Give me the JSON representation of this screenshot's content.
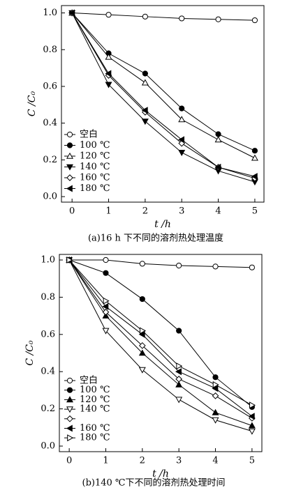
{
  "chart_data": [
    {
      "type": "line",
      "caption": "(a)16 h 下不同的溶剂热处理温度",
      "x_label": "t /h",
      "y_label": "C /C₀",
      "x": [
        0,
        1,
        2,
        3,
        4,
        5
      ],
      "xlim": [
        -0.29,
        5.25
      ],
      "xticks": [
        0,
        1,
        2,
        3,
        4,
        5
      ],
      "ylim": [
        -0.03,
        1.04
      ],
      "yticks": [
        {
          "value": 0,
          "label": "0.0"
        },
        {
          "value": 0.2,
          "label": "0.2"
        },
        {
          "value": 0.4,
          "label": "0.4"
        },
        {
          "value": 0.6,
          "label": "0.6"
        },
        {
          "value": 0.8,
          "label": "0.8"
        },
        {
          "value": 1,
          "label": "1.0"
        }
      ],
      "series": [
        {
          "name": "空白",
          "color": "#000000",
          "marker": "circle-open",
          "values": [
            1.0,
            0.99,
            0.98,
            0.97,
            0.965,
            0.96
          ]
        },
        {
          "name": "100 ℃",
          "color": "#000000",
          "marker": "circle",
          "values": [
            1.0,
            0.78,
            0.67,
            0.48,
            0.34,
            0.25
          ]
        },
        {
          "name": "120 ℃",
          "color": "#000000",
          "marker": "triangle-up-open",
          "values": [
            1.0,
            0.76,
            0.62,
            0.42,
            0.31,
            0.21
          ]
        },
        {
          "name": "140 ℃",
          "color": "#000000",
          "marker": "triangle-down",
          "values": [
            1.0,
            0.61,
            0.41,
            0.24,
            0.14,
            0.08
          ]
        },
        {
          "name": "160 ℃",
          "color": "#000000",
          "marker": "diamond-open",
          "values": [
            1.0,
            0.66,
            0.46,
            0.29,
            0.16,
            0.1
          ]
        },
        {
          "name": "180 ℃",
          "color": "#000000",
          "marker": "triangle-left",
          "values": [
            1.0,
            0.67,
            0.47,
            0.31,
            0.16,
            0.11
          ]
        }
      ]
    },
    {
      "type": "line",
      "caption": "(b)140 ℃下不同的溶剂热处理时间",
      "x_label": "t /h",
      "y_label": "C /C₀",
      "x": [
        0,
        1,
        2,
        3,
        4,
        5
      ],
      "xlim": [
        -0.27,
        5.27
      ],
      "xticks": [
        0,
        1,
        2,
        3,
        4,
        5
      ],
      "ylim": [
        -0.03,
        1.03
      ],
      "yticks": [
        {
          "value": 0,
          "label": "0.0"
        },
        {
          "value": 0.2,
          "label": "0.2"
        },
        {
          "value": 0.4,
          "label": "0.4"
        },
        {
          "value": 0.6,
          "label": "0.6"
        },
        {
          "value": 0.8,
          "label": "0.8"
        },
        {
          "value": 1,
          "label": "1.0"
        }
      ],
      "series": [
        {
          "name": "空白",
          "color": "#000000",
          "marker": "circle-open",
          "values": [
            1.0,
            1.0,
            0.98,
            0.97,
            0.965,
            0.96
          ]
        },
        {
          "name": "100 ℃",
          "color": "#000000",
          "marker": "circle",
          "values": [
            1.0,
            0.93,
            0.79,
            0.62,
            0.37,
            0.21
          ]
        },
        {
          "name": "120 ℃",
          "color": "#000000",
          "marker": "triangle-up",
          "values": [
            1.0,
            0.7,
            0.5,
            0.33,
            0.18,
            0.11
          ]
        },
        {
          "name": "140 ℃",
          "color": "#000000",
          "marker": "triangle-down-open",
          "values": [
            1.0,
            0.62,
            0.41,
            0.25,
            0.14,
            0.08
          ]
        },
        {
          "name": null,
          "color": "#000000",
          "marker": "diamond-open",
          "values": [
            1.0,
            0.72,
            0.54,
            0.36,
            0.27,
            0.15
          ]
        },
        {
          "name": "160 ℃",
          "color": "#000000",
          "marker": "triangle-left",
          "values": [
            1.0,
            0.75,
            0.6,
            0.4,
            0.31,
            0.16
          ]
        },
        {
          "name": "180 ℃",
          "color": "#000000",
          "marker": "triangle-right-open",
          "values": [
            1.0,
            0.78,
            0.62,
            0.43,
            0.33,
            0.22
          ]
        }
      ]
    }
  ]
}
